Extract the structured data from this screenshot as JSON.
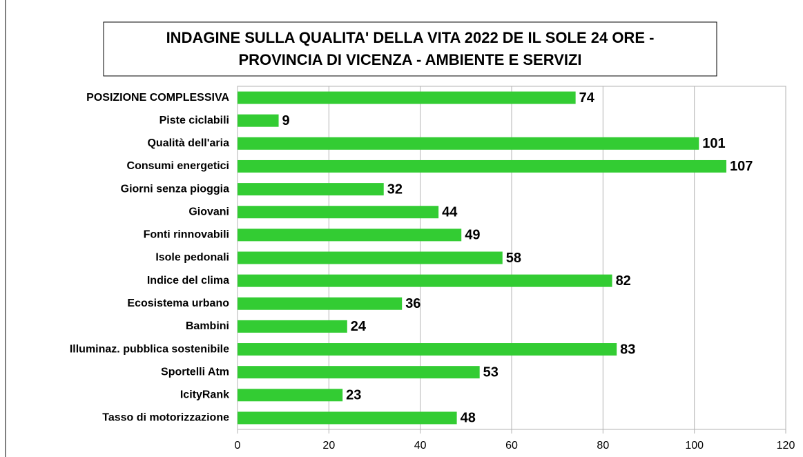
{
  "chart_data": {
    "type": "bar",
    "orientation": "horizontal",
    "title": [
      "INDAGINE SULLA QUALITA' DELLA VITA 2022 DE IL SOLE 24 ORE -",
      "PROVINCIA DI VICENZA - AMBIENTE E SERVIZI"
    ],
    "categories": [
      "POSIZIONE COMPLESSIVA",
      "Piste ciclabili",
      "Qualità dell'aria",
      "Consumi energetici",
      "Giorni senza pioggia",
      "Giovani",
      "Fonti rinnovabili",
      "Isole pedonali",
      "Indice del clima",
      "Ecosistema urbano",
      "Bambini",
      "Illuminaz. pubblica sostenibile",
      "Sportelli Atm",
      "IcityRank",
      "Tasso di motorizzazione"
    ],
    "values": [
      74,
      9,
      101,
      107,
      32,
      44,
      49,
      58,
      82,
      36,
      24,
      83,
      53,
      23,
      48
    ],
    "color": "#33cc33",
    "xlim": [
      0,
      120
    ],
    "xticks": [
      0,
      20,
      40,
      60,
      80,
      100,
      120
    ],
    "grid": true
  }
}
